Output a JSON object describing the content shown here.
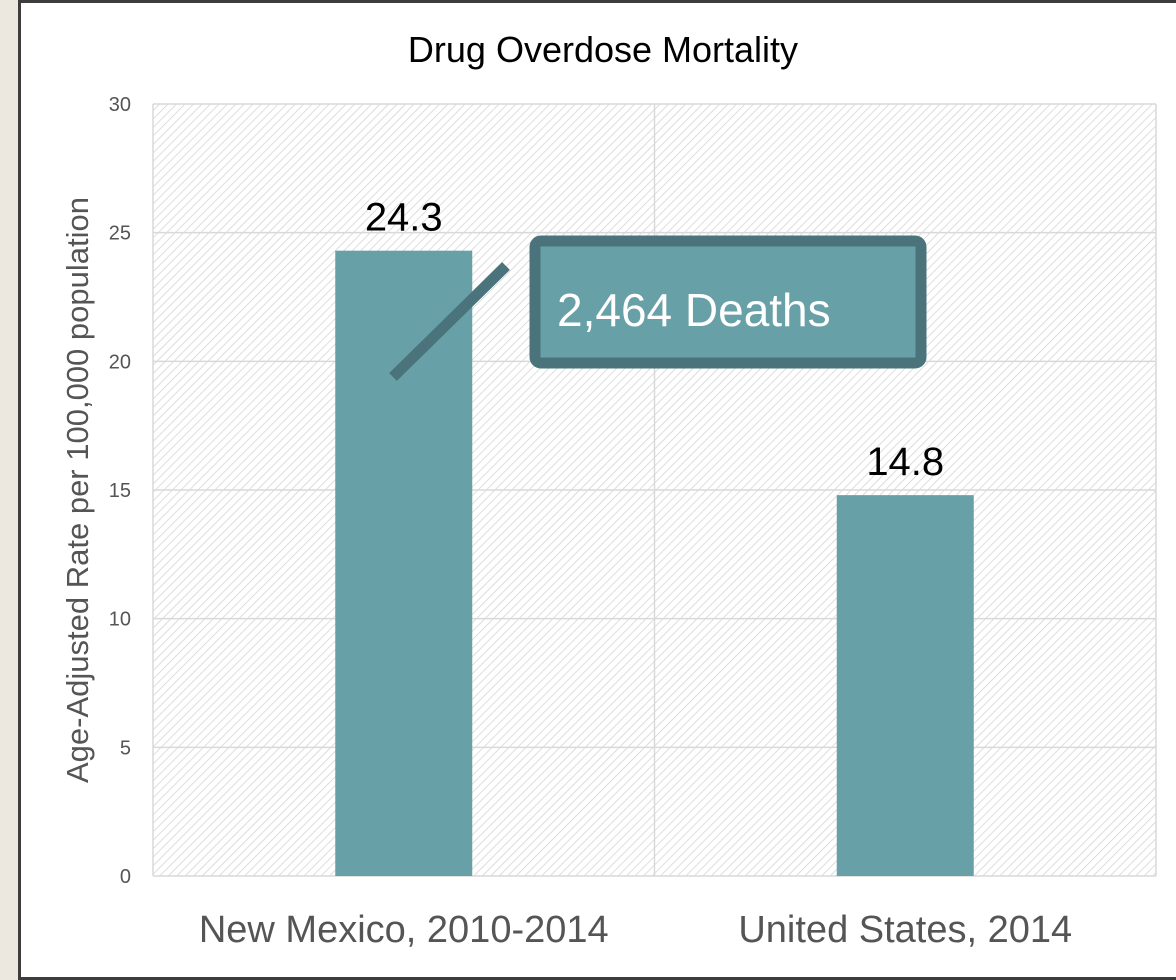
{
  "chart_data": {
    "type": "bar",
    "title": "Drug Overdose Mortality",
    "ylabel": "Age-Adjusted Rate per 100,000 population",
    "xlabel": "",
    "categories": [
      "New Mexico, 2010-2014",
      "United States, 2014"
    ],
    "values": [
      24.3,
      14.8
    ],
    "data_labels": [
      "24.3",
      "14.8"
    ],
    "ylim": [
      0,
      30
    ],
    "yticks": [
      "0",
      "5",
      "10",
      "15",
      "20",
      "25",
      "30"
    ],
    "grid": true,
    "legend": "none",
    "annotation": {
      "text": "2,464 Deaths",
      "target_category": "New Mexico, 2010-2014"
    },
    "colors": {
      "bar": "#68a0a8",
      "callout_fill": "#68a0a8",
      "callout_border": "#4a737b",
      "plot_pattern": "#cfcfcf",
      "gridline": "#d9d9d9"
    }
  }
}
